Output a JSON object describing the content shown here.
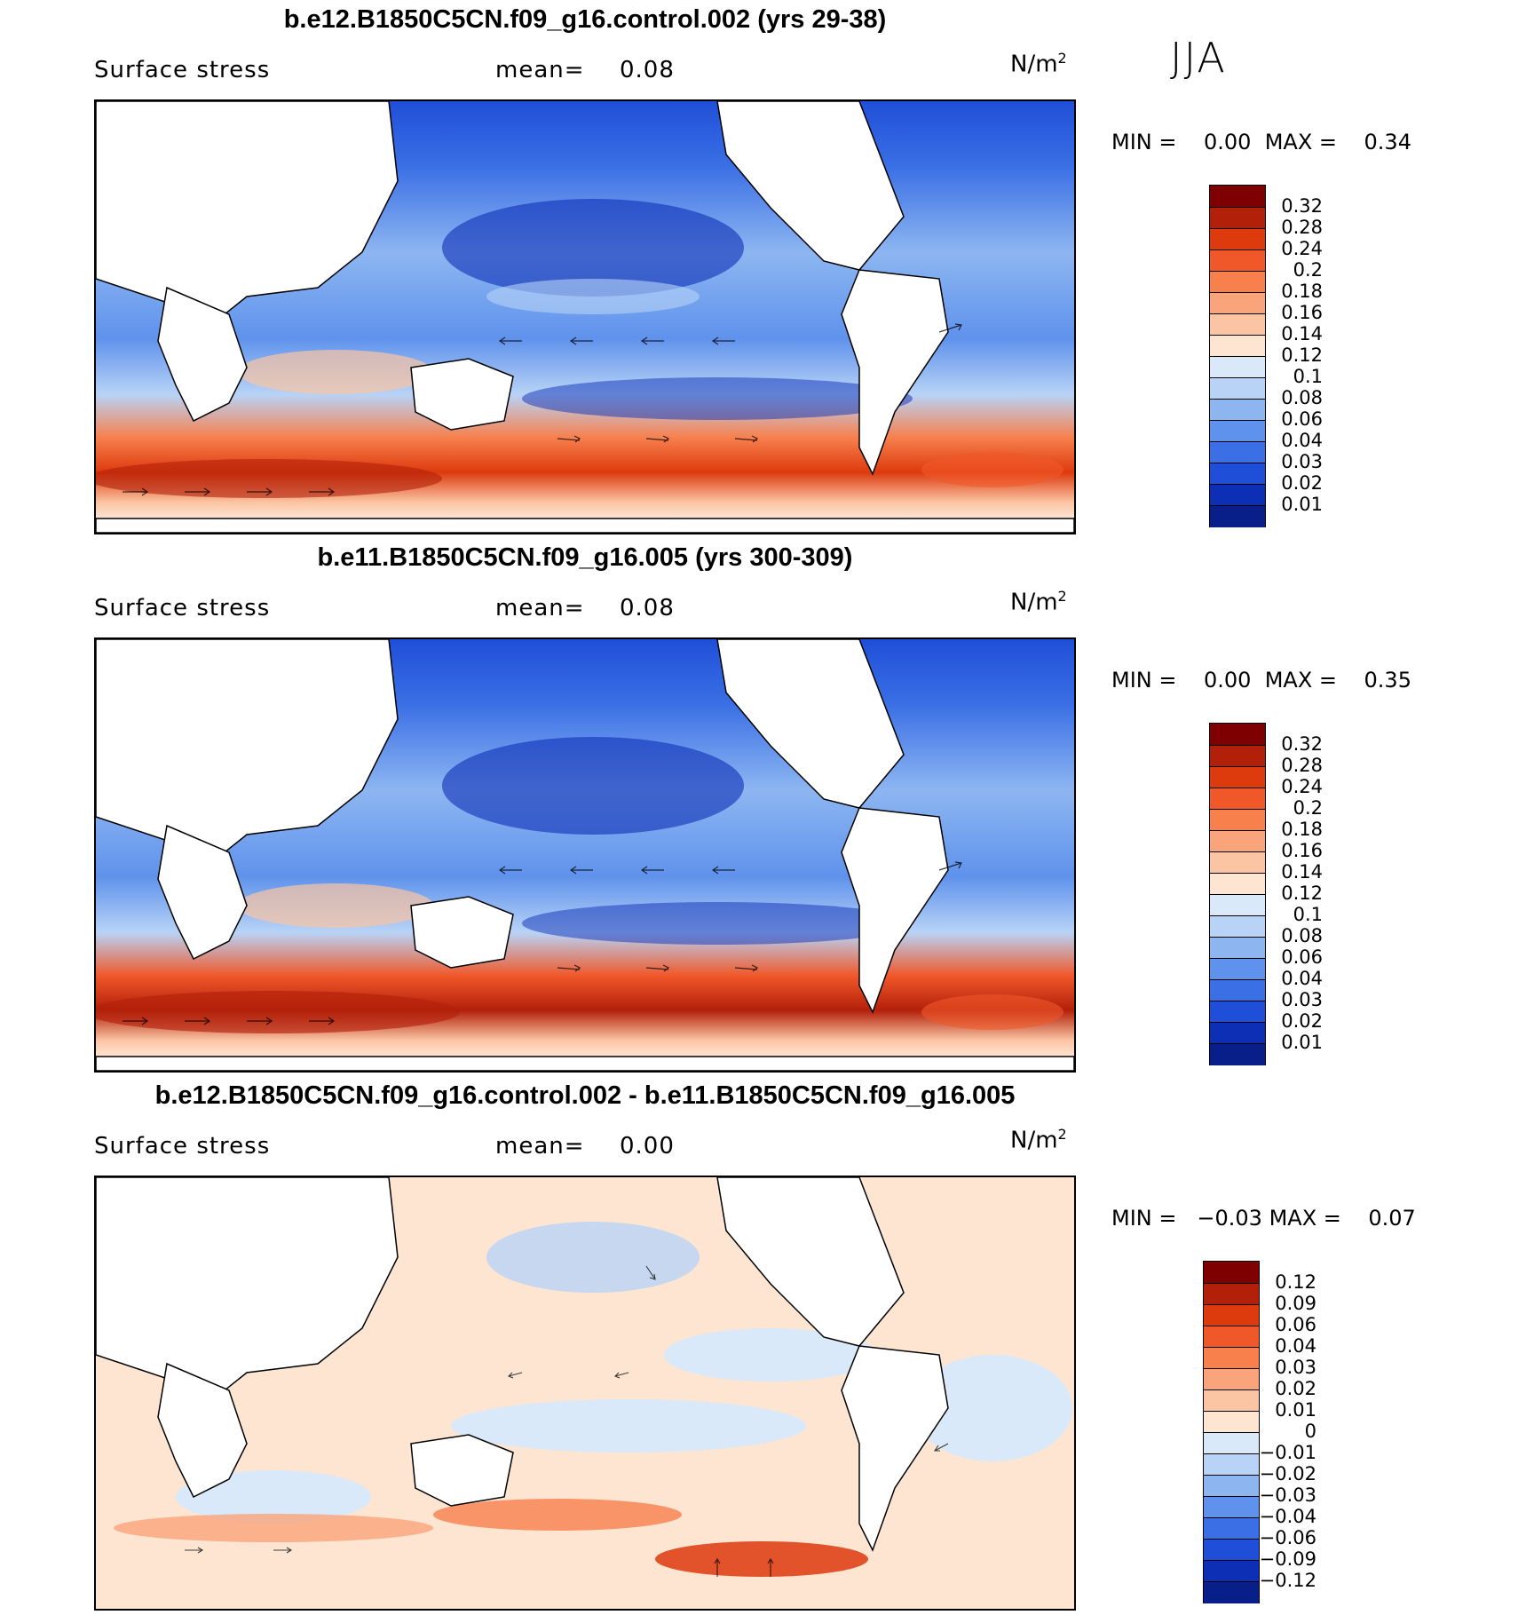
{
  "season": "JJA",
  "panels": [
    {
      "title": "b.e12.B1850C5CN.f09_g16.control.002 (yrs 29-38)",
      "variable": "Surface stress",
      "mean_label": "mean=",
      "mean_value": "0.08",
      "units": "N/m",
      "units_exp": "2",
      "min_label": "MIN =",
      "min_value": "0.00",
      "max_label": "MAX =",
      "max_value": "0.34",
      "colorbar_labels": [
        "0.32",
        "0.28",
        "0.24",
        "0.2",
        "0.18",
        "0.16",
        "0.14",
        "0.12",
        "0.1",
        "0.08",
        "0.06",
        "0.04",
        "0.03",
        "0.02",
        "0.01"
      ],
      "colors": [
        "#7f0000",
        "#b3200a",
        "#dd3a0e",
        "#f0582a",
        "#f7804d",
        "#f9a47b",
        "#fbc5a3",
        "#fde5d2",
        "#d9e9fa",
        "#b8d3f6",
        "#8db6f1",
        "#5f92ec",
        "#3a6fe5",
        "#1f4fd8",
        "#0d2fb5",
        "#081e88"
      ]
    },
    {
      "title": "b.e11.B1850C5CN.f09_g16.005 (yrs 300-309)",
      "variable": "Surface stress",
      "mean_label": "mean=",
      "mean_value": "0.08",
      "units": "N/m",
      "units_exp": "2",
      "min_label": "MIN =",
      "min_value": "0.00",
      "max_label": "MAX =",
      "max_value": "0.35",
      "colorbar_labels": [
        "0.32",
        "0.28",
        "0.24",
        "0.2",
        "0.18",
        "0.16",
        "0.14",
        "0.12",
        "0.1",
        "0.08",
        "0.06",
        "0.04",
        "0.03",
        "0.02",
        "0.01"
      ],
      "colors": [
        "#7f0000",
        "#b3200a",
        "#dd3a0e",
        "#f0582a",
        "#f7804d",
        "#f9a47b",
        "#fbc5a3",
        "#fde5d2",
        "#d9e9fa",
        "#b8d3f6",
        "#8db6f1",
        "#5f92ec",
        "#3a6fe5",
        "#1f4fd8",
        "#0d2fb5",
        "#081e88"
      ]
    },
    {
      "title": "b.e12.B1850C5CN.f09_g16.control.002 - b.e11.B1850C5CN.f09_g16.005",
      "variable": "Surface stress",
      "mean_label": "mean=",
      "mean_value": "0.00",
      "units": "N/m",
      "units_exp": "2",
      "min_label": "MIN =",
      "min_value": "−0.03",
      "max_label": "MAX =",
      "max_value": "0.07",
      "colorbar_labels": [
        "0.12",
        "0.09",
        "0.06",
        "0.04",
        "0.03",
        "0.02",
        "0.01",
        "0",
        "−0.01",
        "−0.02",
        "−0.03",
        "−0.04",
        "−0.06",
        "−0.09",
        "−0.12"
      ],
      "colors": [
        "#7f0000",
        "#b3200a",
        "#dd3a0e",
        "#f0582a",
        "#f7804d",
        "#f9a47b",
        "#fbc5a3",
        "#fde5d2",
        "#d9e9fa",
        "#b8d3f6",
        "#8db6f1",
        "#5f92ec",
        "#3a6fe5",
        "#1f4fd8",
        "#0d2fb5",
        "#081e88"
      ]
    }
  ]
}
